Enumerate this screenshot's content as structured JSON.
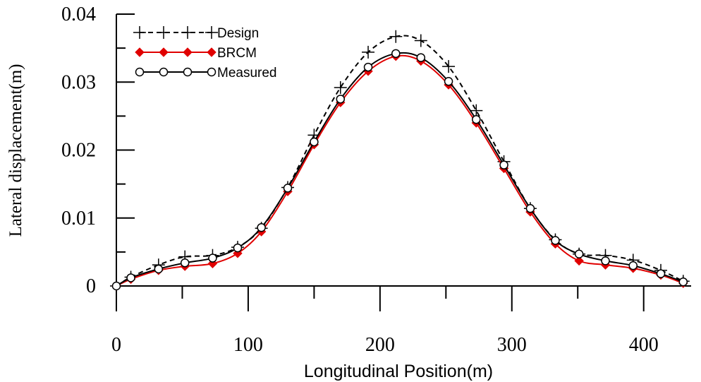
{
  "chart_data": {
    "type": "line",
    "title": "",
    "xlabel": "Longitudinal Position(m)",
    "ylabel": "Lateral displacement(m)",
    "xlim": [
      0,
      436
    ],
    "ylim": [
      0,
      0.04
    ],
    "x_ticks": [
      0,
      100,
      200,
      300,
      400
    ],
    "x_tick_labels": [
      "0",
      "100",
      "200",
      "300",
      "400"
    ],
    "y_ticks": [
      0,
      0.01,
      0.02,
      0.03,
      0.04
    ],
    "y_tick_labels": [
      "0",
      "0.01",
      "0.02",
      "0.03",
      "0.04"
    ],
    "grid": false,
    "legend_position": "top-left",
    "x": [
      0,
      11,
      32,
      52,
      73,
      92,
      110,
      130,
      150,
      170,
      191,
      212,
      231,
      252,
      273,
      294,
      314,
      333,
      351,
      371,
      392,
      413,
      430
    ],
    "series": [
      {
        "name": "Design",
        "color": "#000000",
        "dash": true,
        "marker": "plus",
        "values": [
          0.0,
          0.0013,
          0.0031,
          0.0043,
          0.0045,
          0.0057,
          0.0085,
          0.0145,
          0.0222,
          0.0292,
          0.0344,
          0.0367,
          0.0361,
          0.0323,
          0.0258,
          0.0183,
          0.0114,
          0.0068,
          0.0047,
          0.0045,
          0.0038,
          0.0023,
          0.0007
        ]
      },
      {
        "name": "BRCM",
        "color": "#e00000",
        "dash": false,
        "marker": "diamond",
        "values": [
          0.0,
          0.001,
          0.0023,
          0.0029,
          0.0033,
          0.0048,
          0.008,
          0.0139,
          0.0208,
          0.027,
          0.0316,
          0.0338,
          0.0331,
          0.0296,
          0.024,
          0.0173,
          0.0109,
          0.0062,
          0.0037,
          0.0031,
          0.0026,
          0.0016,
          0.0004
        ]
      },
      {
        "name": "Measured",
        "color": "#000000",
        "dash": false,
        "marker": "circle",
        "values": [
          0.0,
          0.0012,
          0.0025,
          0.0034,
          0.0041,
          0.0056,
          0.0086,
          0.0144,
          0.0212,
          0.0275,
          0.0322,
          0.0342,
          0.0336,
          0.0301,
          0.0245,
          0.0178,
          0.0114,
          0.0067,
          0.0047,
          0.0037,
          0.003,
          0.0018,
          0.0006
        ]
      }
    ]
  }
}
